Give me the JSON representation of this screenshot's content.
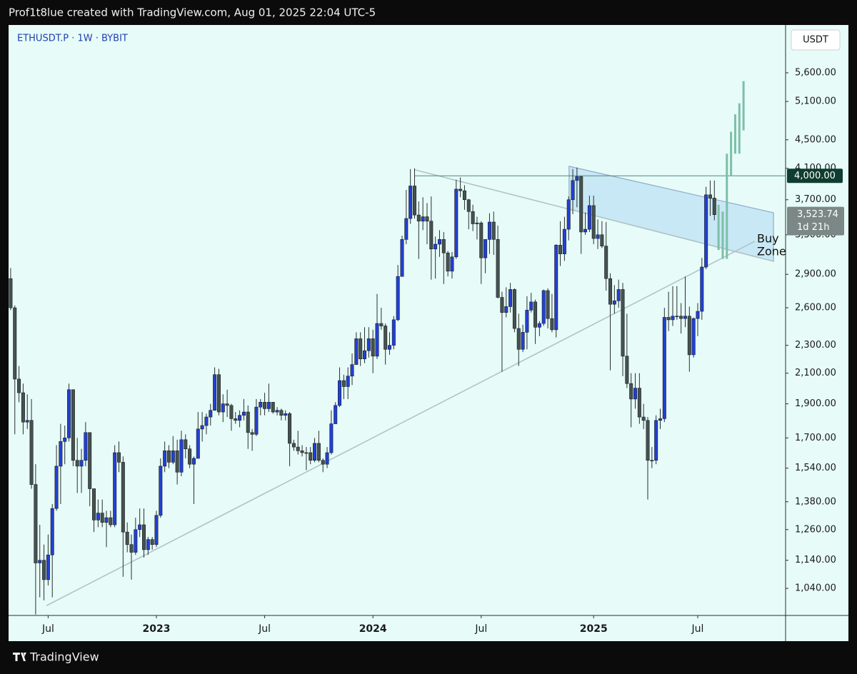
{
  "header": {
    "title": "Prof1t8lue created with TradingView.com, Aug 01, 2025 22:04 UTC-5"
  },
  "footer": {
    "brand": "TradingView"
  },
  "chart_data": {
    "type": "candlestick",
    "symbol": "ETHUSDT.P · 1W · BYBIT",
    "currency": "USDT",
    "log_scale": true,
    "grid": false,
    "up_color": "#2240d4",
    "down_color": "#46524f",
    "xlim": [
      -0.5,
      186.1
    ],
    "xticks": [
      {
        "value": 9,
        "label": "Jul"
      },
      {
        "value": 35,
        "label": "2023"
      },
      {
        "value": 61,
        "label": "Jul"
      },
      {
        "value": 87,
        "label": "2024"
      },
      {
        "value": 113,
        "label": "Jul"
      },
      {
        "value": 140,
        "label": "2025"
      },
      {
        "value": 165,
        "label": "Jul"
      }
    ],
    "ylim": [
      952,
      6516
    ],
    "yticks": [
      {
        "value": 1040,
        "label": "1,040.00"
      },
      {
        "value": 1140,
        "label": "1,140.00"
      },
      {
        "value": 1260,
        "label": "1,260.00"
      },
      {
        "value": 1380,
        "label": "1,380.00"
      },
      {
        "value": 1540,
        "label": "1,540.00"
      },
      {
        "value": 1700,
        "label": "1,700.00"
      },
      {
        "value": 1900,
        "label": "1,900.00"
      },
      {
        "value": 2100,
        "label": "2,100.00"
      },
      {
        "value": 2300,
        "label": "2,300.00"
      },
      {
        "value": 2600,
        "label": "2,600.00"
      },
      {
        "value": 2900,
        "label": "2,900.00"
      },
      {
        "value": 3300,
        "label": "3,300.00"
      },
      {
        "value": 3700,
        "label": "3,700.00"
      },
      {
        "value": 4100,
        "label": "4,100.00"
      },
      {
        "value": 4500,
        "label": "4,500.00"
      },
      {
        "value": 5100,
        "label": "5,100.00"
      },
      {
        "value": 5600,
        "label": "5,600.00"
      }
    ],
    "open": [
      2860,
      2600,
      2060,
      1970,
      1790,
      1800,
      1460,
      1130,
      1140,
      1070,
      1160,
      1350,
      1550,
      1680,
      1700,
      1990,
      1580,
      1550,
      1580,
      1730,
      1440,
      1300,
      1330,
      1290,
      1310,
      1280,
      1620,
      1570,
      1250,
      1200,
      1170,
      1260,
      1280,
      1180,
      1220,
      1200,
      1320,
      1550,
      1630,
      1570,
      1630,
      1520,
      1690,
      1640,
      1560,
      1590,
      1750,
      1770,
      1820,
      1860,
      2090,
      1850,
      1900,
      1890,
      1810,
      1800,
      1830,
      1850,
      1730,
      1720,
      1880,
      1910,
      1870,
      1910,
      1850,
      1860,
      1830,
      1840,
      1670,
      1650,
      1630,
      1620,
      1620,
      1580,
      1670,
      1580,
      1560,
      1620,
      1780,
      1890,
      2050,
      2010,
      2080,
      2160,
      2350,
      2200,
      2260,
      2350,
      2220,
      2470,
      2450,
      2270,
      2300,
      2500,
      2880,
      3250,
      3480,
      3870,
      3520,
      3450,
      3500,
      3450,
      3150,
      3200,
      3250,
      3110,
      2930,
      3070,
      3830,
      3810,
      3700,
      3560,
      3420,
      3430,
      3060,
      3250,
      3440,
      3250,
      2690,
      2560,
      2610,
      2760,
      2430,
      2270,
      2400,
      2580,
      2650,
      2440,
      2470,
      2750,
      2510,
      2420,
      3190,
      3100,
      3360,
      3700,
      3940,
      3990,
      3330,
      3360,
      3630,
      3260,
      3300,
      3180,
      2860,
      2630,
      2660,
      2760,
      2220,
      2030,
      1930,
      2000,
      1820,
      1800,
      1580,
      1580,
      1800,
      1810,
      2520,
      2500,
      2530,
      2530,
      2510,
      2530,
      2230,
      2510,
      2570,
      2970,
      3760,
      3720
    ],
    "high": [
      2960,
      2620,
      2150,
      2030,
      1960,
      1930,
      1560,
      1280,
      1200,
      1240,
      1370,
      1660,
      1780,
      1770,
      2030,
      1990,
      1700,
      1640,
      1790,
      1730,
      1440,
      1390,
      1390,
      1340,
      1340,
      1660,
      1680,
      1600,
      1290,
      1240,
      1310,
      1350,
      1350,
      1230,
      1230,
      1340,
      1590,
      1680,
      1660,
      1710,
      1690,
      1740,
      1720,
      1660,
      1600,
      1850,
      1850,
      1840,
      1900,
      2140,
      2130,
      1960,
      1990,
      1900,
      1850,
      1860,
      1930,
      1890,
      1750,
      1930,
      1930,
      1970,
      2030,
      1910,
      1880,
      1870,
      1860,
      1850,
      1690,
      1740,
      1660,
      1650,
      1650,
      1700,
      1740,
      1590,
      1650,
      1860,
      1910,
      2140,
      2090,
      2140,
      2240,
      2400,
      2400,
      2440,
      2440,
      2420,
      2720,
      2600,
      2470,
      2400,
      2530,
      2990,
      3290,
      3820,
      4090,
      4100,
      3680,
      3730,
      3660,
      3740,
      3280,
      3350,
      3330,
      3130,
      3120,
      3950,
      3980,
      3880,
      3710,
      3640,
      3500,
      3450,
      3250,
      3540,
      3560,
      3400,
      2740,
      2780,
      2820,
      2770,
      2550,
      2460,
      2700,
      2730,
      2670,
      2490,
      2760,
      2770,
      2720,
      3200,
      3450,
      3500,
      3740,
      4090,
      4110,
      4000,
      3550,
      3750,
      3750,
      3470,
      3450,
      3440,
      2910,
      2800,
      2850,
      2820,
      2550,
      2100,
      2100,
      2100,
      1900,
      1820,
      1650,
      1830,
      1870,
      2600,
      2740,
      2790,
      2790,
      2640,
      2880,
      2610,
      2520,
      2640,
      3060,
      3860,
      3940,
      3940
    ],
    "low": [
      2580,
      1720,
      1910,
      1720,
      1750,
      1440,
      955,
      1010,
      1000,
      1050,
      1010,
      1340,
      1370,
      1560,
      1680,
      1550,
      1420,
      1420,
      1550,
      1360,
      1250,
      1270,
      1270,
      1190,
      1270,
      1270,
      1520,
      1080,
      1170,
      1070,
      1160,
      1230,
      1150,
      1160,
      1180,
      1190,
      1310,
      1520,
      1540,
      1560,
      1460,
      1500,
      1590,
      1540,
      1370,
      1590,
      1680,
      1720,
      1770,
      1860,
      1830,
      1790,
      1820,
      1740,
      1780,
      1760,
      1800,
      1640,
      1630,
      1710,
      1830,
      1830,
      1850,
      1840,
      1830,
      1800,
      1800,
      1550,
      1630,
      1610,
      1600,
      1530,
      1560,
      1570,
      1570,
      1520,
      1540,
      1610,
      1780,
      1880,
      1930,
      1930,
      2020,
      2160,
      2150,
      2170,
      2210,
      2100,
      2200,
      2420,
      2160,
      2230,
      2270,
      2490,
      2880,
      3200,
      3420,
      3480,
      3050,
      3350,
      3200,
      2850,
      2860,
      3070,
      2810,
      2880,
      2860,
      3050,
      3730,
      3580,
      3360,
      3340,
      3250,
      2810,
      2910,
      3100,
      3090,
      2680,
      2110,
      2520,
      2560,
      2400,
      2150,
      2250,
      2270,
      2560,
      2310,
      2370,
      2450,
      2430,
      2400,
      2360,
      2980,
      3030,
      3240,
      3530,
      3610,
      3100,
      3300,
      3330,
      3200,
      3150,
      3160,
      2750,
      2120,
      2550,
      2600,
      2080,
      2000,
      1760,
      1870,
      1780,
      1750,
      1390,
      1540,
      1560,
      1750,
      1790,
      2410,
      2450,
      2500,
      2390,
      2440,
      2110,
      2210,
      2370,
      2500,
      2950,
      3510,
      3460
    ],
    "close": [
      2600,
      2060,
      1970,
      1790,
      1800,
      1460,
      1130,
      1140,
      1070,
      1160,
      1350,
      1550,
      1680,
      1700,
      1990,
      1580,
      1550,
      1580,
      1730,
      1440,
      1300,
      1330,
      1290,
      1310,
      1280,
      1620,
      1570,
      1250,
      1200,
      1170,
      1260,
      1280,
      1180,
      1220,
      1200,
      1320,
      1550,
      1630,
      1570,
      1630,
      1520,
      1690,
      1640,
      1560,
      1590,
      1750,
      1770,
      1820,
      1860,
      2090,
      1850,
      1900,
      1890,
      1810,
      1800,
      1830,
      1850,
      1730,
      1720,
      1880,
      1910,
      1870,
      1910,
      1850,
      1860,
      1830,
      1840,
      1670,
      1650,
      1630,
      1620,
      1620,
      1580,
      1670,
      1580,
      1560,
      1620,
      1780,
      1890,
      2050,
      2010,
      2080,
      2160,
      2350,
      2200,
      2260,
      2350,
      2220,
      2470,
      2450,
      2270,
      2300,
      2500,
      2880,
      3250,
      3480,
      3870,
      3520,
      3450,
      3500,
      3450,
      3150,
      3200,
      3250,
      3110,
      2930,
      3070,
      3830,
      3810,
      3700,
      3560,
      3420,
      3430,
      3060,
      3250,
      3440,
      3250,
      2690,
      2560,
      2610,
      2760,
      2430,
      2270,
      2400,
      2580,
      2650,
      2440,
      2470,
      2750,
      2510,
      2420,
      3190,
      3100,
      3360,
      3700,
      3940,
      3990,
      3330,
      3360,
      3630,
      3260,
      3300,
      3180,
      2860,
      2630,
      2660,
      2760,
      2220,
      2030,
      1930,
      2000,
      1820,
      1800,
      1580,
      1580,
      1800,
      1810,
      2520,
      2500,
      2530,
      2530,
      2510,
      2530,
      2230,
      2510,
      2570,
      2970,
      3760,
      3720,
      3523.74
    ],
    "last_price": {
      "value": 3523.74,
      "label": "3,523.74"
    },
    "countdown": "1d 21h",
    "hline": {
      "value": 4000,
      "label": "4,000.00",
      "x": 97.1
    },
    "trendlines": [
      {
        "x": [
          8.6,
          178.7
        ],
        "y": [
          983,
          3230
        ]
      },
      {
        "x": [
          97.1,
          183.2
        ],
        "y": [
          4079,
          3026
        ]
      }
    ],
    "channel": {
      "x": [
        134.1,
        183.2
      ],
      "upper": [
        4127,
        3546
      ],
      "lower": [
        3588,
        3026
      ]
    },
    "projection_color": "#7dbfa8",
    "projection": [
      {
        "x": 170,
        "low": 3140,
        "high": 3640
      },
      {
        "x": 171,
        "low": 3050,
        "high": 3560
      },
      {
        "x": 172,
        "low": 3050,
        "high": 4300
      },
      {
        "x": 173,
        "low": 4000,
        "high": 4620
      },
      {
        "x": 174,
        "low": 4300,
        "high": 4890
      },
      {
        "x": 175,
        "low": 4300,
        "high": 5070
      },
      {
        "x": 176,
        "low": 4640,
        "high": 5450
      }
    ],
    "zone_label": [
      "Buy",
      "Zone"
    ]
  }
}
